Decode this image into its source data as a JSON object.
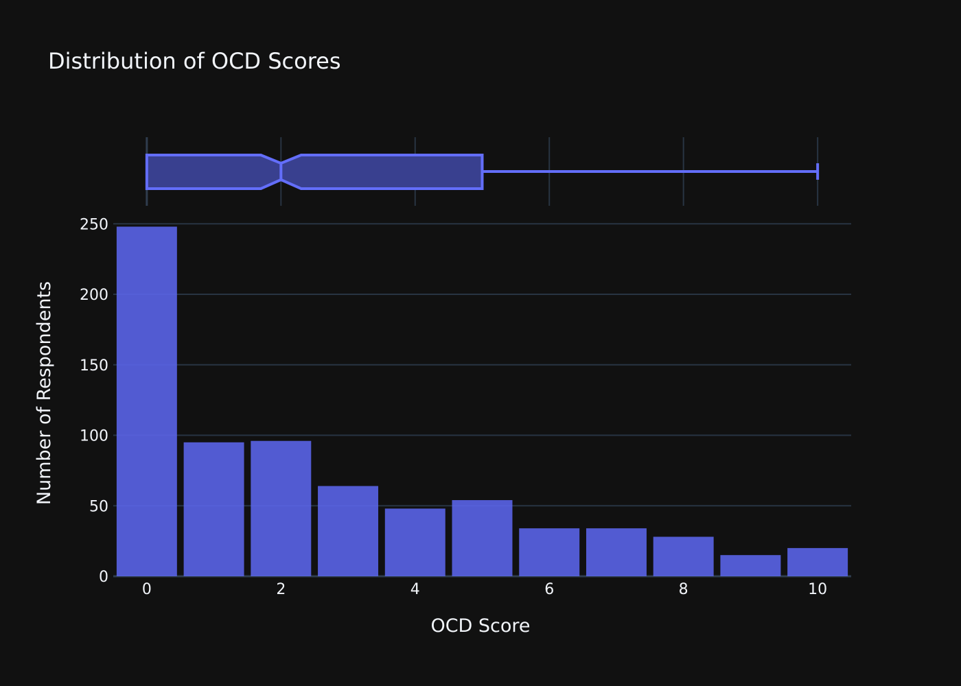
{
  "chart_data": {
    "type": "bar",
    "title": "Distribution of OCD Scores",
    "xlabel": "OCD Score",
    "ylabel": "Number of Respondents",
    "x": [
      0,
      1,
      2,
      3,
      4,
      5,
      6,
      7,
      8,
      9,
      10
    ],
    "values": [
      248,
      95,
      96,
      64,
      48,
      54,
      34,
      34,
      28,
      15,
      20
    ],
    "xlim": [
      -0.5,
      10.5
    ],
    "ylim": [
      0,
      255
    ],
    "x_ticks": [
      0,
      2,
      4,
      6,
      8,
      10
    ],
    "y_ticks": [
      0,
      50,
      100,
      150,
      200,
      250
    ],
    "grid": true,
    "bar_color": "#5a64e8",
    "background": "#111111",
    "gridline_color": "#283442",
    "marginal_box": {
      "type": "box",
      "notched": true,
      "min": 0,
      "q1": 0,
      "median": 2,
      "q3": 5,
      "max": 10,
      "notch_low": 1.7,
      "notch_high": 2.3,
      "fill_color": "#39408f",
      "line_color": "#636efa"
    }
  }
}
